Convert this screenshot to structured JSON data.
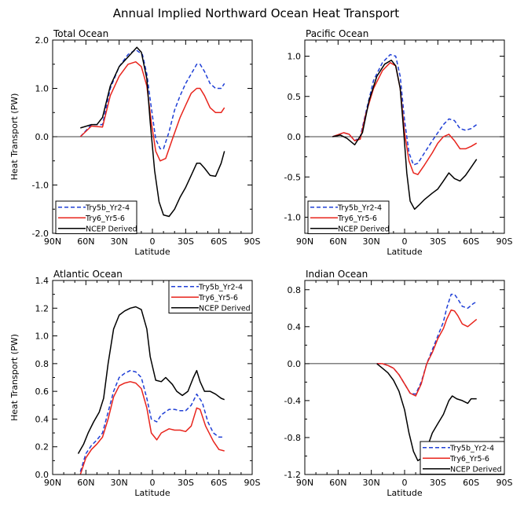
{
  "title": "Annual Implied Northward Ocean Heat Transport",
  "colors": {
    "series": [
      "#1f3fd6",
      "#e8241c",
      "#000000"
    ],
    "axis": "#000000"
  },
  "chart_data": [
    {
      "type": "line",
      "title": "Total Ocean",
      "xlabel": "Latitude",
      "ylabel": "Heat Transport (PW)",
      "xlim": [
        90,
        -90
      ],
      "ylim": [
        -2.0,
        2.0
      ],
      "xticks": [
        90,
        60,
        30,
        0,
        -30,
        -60,
        -90
      ],
      "xtick_labels": [
        "90N",
        "60N",
        "30N",
        "0",
        "30S",
        "60S",
        "90S"
      ],
      "yticks": [
        -2.0,
        -1.0,
        0.0,
        1.0,
        2.0
      ],
      "ytick_labels": [
        "-2.0",
        "-1.0",
        "0.0",
        "1.0",
        "2.0"
      ],
      "legend_position": "bottom-left",
      "series": [
        {
          "name": "Try5b_Yr2-4",
          "style": "dashed",
          "x": [
            65,
            55,
            45,
            38,
            30,
            22,
            15,
            9,
            5,
            1,
            -3,
            -7,
            -10,
            -15,
            -20,
            -25,
            -30,
            -35,
            -40,
            -43,
            -47,
            -52,
            -57,
            -62,
            -65
          ],
          "y": [
            0.0,
            0.25,
            0.25,
            1.0,
            1.45,
            1.7,
            1.8,
            1.7,
            1.3,
            0.6,
            -0.05,
            -0.25,
            -0.25,
            0.1,
            0.55,
            0.85,
            1.1,
            1.3,
            1.5,
            1.5,
            1.35,
            1.1,
            1.0,
            1.0,
            1.1
          ]
        },
        {
          "name": "Try6_Yr5-6",
          "style": "solid",
          "x": [
            65,
            55,
            45,
            38,
            30,
            22,
            15,
            10,
            5,
            1,
            -3,
            -7,
            -12,
            -18,
            -25,
            -30,
            -35,
            -40,
            -43,
            -47,
            -52,
            -57,
            -62,
            -65
          ],
          "y": [
            0.0,
            0.22,
            0.2,
            0.85,
            1.25,
            1.5,
            1.55,
            1.45,
            1.05,
            0.3,
            -0.3,
            -0.5,
            -0.45,
            -0.05,
            0.4,
            0.65,
            0.9,
            1.0,
            1.0,
            0.85,
            0.6,
            0.5,
            0.5,
            0.6
          ]
        },
        {
          "name": "NCEP Derived",
          "style": "solid",
          "x": [
            65,
            55,
            50,
            45,
            38,
            30,
            22,
            14,
            10,
            5,
            2,
            -2,
            -6,
            -10,
            -15,
            -20,
            -25,
            -30,
            -35,
            -40,
            -43,
            -47,
            -52,
            -57,
            -62,
            -65
          ],
          "y": [
            0.18,
            0.25,
            0.25,
            0.4,
            1.05,
            1.45,
            1.65,
            1.85,
            1.75,
            1.2,
            0.3,
            -0.7,
            -1.35,
            -1.62,
            -1.65,
            -1.5,
            -1.25,
            -1.05,
            -0.8,
            -0.55,
            -0.55,
            -0.65,
            -0.8,
            -0.82,
            -0.55,
            -0.3
          ]
        }
      ]
    },
    {
      "type": "line",
      "title": "Pacific Ocean",
      "xlabel": "Latitude",
      "ylabel": "",
      "xlim": [
        90,
        -90
      ],
      "ylim": [
        -1.2,
        1.2
      ],
      "xticks": [
        90,
        60,
        30,
        0,
        -30,
        -60,
        -90
      ],
      "xtick_labels": [
        "90N",
        "60N",
        "30N",
        "0",
        "30S",
        "60S",
        "90S"
      ],
      "yticks": [
        -1.0,
        -0.5,
        0.0,
        0.5,
        1.0
      ],
      "ytick_labels": [
        "-1.0",
        "-0.5",
        "0.0",
        "0.5",
        "1.0"
      ],
      "legend_position": "bottom-left",
      "series": [
        {
          "name": "Try5b_Yr2-4",
          "style": "dashed",
          "x": [
            65,
            55,
            50,
            45,
            40,
            35,
            28,
            20,
            13,
            8,
            4,
            0,
            -4,
            -8,
            -12,
            -18,
            -25,
            -30,
            -35,
            -40,
            -45,
            -50,
            -55,
            -60,
            -65
          ],
          "y": [
            0.0,
            0.05,
            0.03,
            -0.05,
            0.0,
            0.3,
            0.7,
            0.92,
            1.02,
            1.0,
            0.75,
            0.2,
            -0.2,
            -0.35,
            -0.33,
            -0.2,
            -0.05,
            0.05,
            0.15,
            0.22,
            0.2,
            0.1,
            0.08,
            0.1,
            0.15
          ]
        },
        {
          "name": "Try6_Yr5-6",
          "style": "solid",
          "x": [
            65,
            55,
            50,
            45,
            40,
            35,
            28,
            20,
            13,
            8,
            4,
            0,
            -4,
            -8,
            -12,
            -18,
            -25,
            -30,
            -35,
            -40,
            -45,
            -50,
            -55,
            -60,
            -65
          ],
          "y": [
            0.0,
            0.05,
            0.03,
            -0.05,
            -0.03,
            0.28,
            0.6,
            0.82,
            0.92,
            0.88,
            0.6,
            0.05,
            -0.3,
            -0.45,
            -0.47,
            -0.35,
            -0.2,
            -0.08,
            0.0,
            0.03,
            -0.05,
            -0.15,
            -0.15,
            -0.12,
            -0.08
          ]
        },
        {
          "name": "NCEP Derived",
          "style": "solid",
          "x": [
            65,
            58,
            52,
            45,
            38,
            32,
            25,
            18,
            12,
            8,
            4,
            1,
            -2,
            -5,
            -9,
            -13,
            -18,
            -25,
            -30,
            -35,
            -40,
            -45,
            -50,
            -55,
            -60,
            -65
          ],
          "y": [
            0.0,
            0.02,
            -0.02,
            -0.1,
            0.05,
            0.45,
            0.75,
            0.9,
            0.95,
            0.88,
            0.6,
            0.1,
            -0.45,
            -0.8,
            -0.9,
            -0.85,
            -0.78,
            -0.7,
            -0.65,
            -0.55,
            -0.45,
            -0.52,
            -0.55,
            -0.48,
            -0.38,
            -0.28
          ]
        }
      ]
    },
    {
      "type": "line",
      "title": "Atlantic Ocean",
      "xlabel": "Latitude",
      "ylabel": "Heat Transport (PW)",
      "xlim": [
        90,
        -90
      ],
      "ylim": [
        0.0,
        1.4
      ],
      "xticks": [
        90,
        60,
        30,
        0,
        -30,
        -60,
        -90
      ],
      "xtick_labels": [
        "90N",
        "60N",
        "30N",
        "0",
        "30S",
        "60S",
        "90S"
      ],
      "yticks": [
        0.0,
        0.2,
        0.4,
        0.6,
        0.8,
        1.0,
        1.2,
        1.4
      ],
      "ytick_labels": [
        "0.0",
        "0.2",
        "0.4",
        "0.6",
        "0.8",
        "1.0",
        "1.2",
        "1.4"
      ],
      "legend_position": "top-right",
      "series": [
        {
          "name": "Try5b_Yr2-4",
          "style": "dashed",
          "x": [
            65,
            60,
            55,
            50,
            45,
            40,
            35,
            30,
            25,
            20,
            15,
            10,
            5,
            1,
            -4,
            -8,
            -15,
            -20,
            -25,
            -30,
            -35,
            -40,
            -45,
            -50,
            -55,
            -60,
            -65
          ],
          "y": [
            0.02,
            0.15,
            0.21,
            0.25,
            0.3,
            0.45,
            0.6,
            0.7,
            0.73,
            0.75,
            0.74,
            0.7,
            0.55,
            0.4,
            0.38,
            0.43,
            0.47,
            0.47,
            0.46,
            0.46,
            0.5,
            0.58,
            0.52,
            0.38,
            0.3,
            0.27,
            0.27
          ]
        },
        {
          "name": "Try6_Yr5-6",
          "style": "solid",
          "x": [
            65,
            60,
            55,
            50,
            45,
            40,
            35,
            30,
            25,
            20,
            15,
            10,
            5,
            1,
            -4,
            -8,
            -15,
            -20,
            -25,
            -30,
            -35,
            -40,
            -43,
            -48,
            -55,
            -60,
            -65
          ],
          "y": [
            0.0,
            0.12,
            0.18,
            0.22,
            0.27,
            0.4,
            0.56,
            0.64,
            0.66,
            0.67,
            0.66,
            0.62,
            0.48,
            0.3,
            0.25,
            0.3,
            0.33,
            0.32,
            0.32,
            0.31,
            0.35,
            0.48,
            0.47,
            0.35,
            0.24,
            0.18,
            0.17
          ]
        },
        {
          "name": "NCEP Derived",
          "style": "solid",
          "x": [
            67,
            62,
            58,
            53,
            48,
            44,
            40,
            35,
            30,
            25,
            20,
            15,
            10,
            5,
            2,
            -3,
            -8,
            -12,
            -18,
            -22,
            -27,
            -32,
            -37,
            -40,
            -43,
            -47,
            -52,
            -57,
            -62,
            -65
          ],
          "y": [
            0.15,
            0.22,
            0.3,
            0.38,
            0.45,
            0.55,
            0.8,
            1.05,
            1.15,
            1.18,
            1.2,
            1.21,
            1.19,
            1.05,
            0.85,
            0.68,
            0.67,
            0.7,
            0.65,
            0.6,
            0.57,
            0.6,
            0.7,
            0.75,
            0.67,
            0.6,
            0.6,
            0.58,
            0.55,
            0.54
          ]
        }
      ]
    },
    {
      "type": "line",
      "title": "Indian Ocean",
      "xlabel": "Latitude",
      "ylabel": "",
      "xlim": [
        90,
        -90
      ],
      "ylim": [
        -1.2,
        0.9
      ],
      "xticks": [
        90,
        60,
        30,
        0,
        -30,
        -60,
        -90
      ],
      "xtick_labels": [
        "90N",
        "60N",
        "30N",
        "0",
        "30S",
        "60S",
        "90S"
      ],
      "yticks": [
        -1.2,
        -0.8,
        -0.4,
        0.0,
        0.4,
        0.8
      ],
      "ytick_labels": [
        "-1.2",
        "-0.8",
        "-0.4",
        "0.0",
        "0.4",
        "0.8"
      ],
      "legend_position": "bottom-right",
      "series": [
        {
          "name": "Try5b_Yr2-4",
          "style": "dashed",
          "x": [
            25,
            20,
            15,
            10,
            5,
            0,
            -5,
            -10,
            -15,
            -20,
            -25,
            -30,
            -35,
            -38,
            -42,
            -45,
            -48,
            -52,
            -57,
            -62,
            -65
          ],
          "y": [
            0.0,
            0.0,
            -0.02,
            -0.05,
            -0.12,
            -0.22,
            -0.32,
            -0.33,
            -0.2,
            0.0,
            0.15,
            0.3,
            0.45,
            0.6,
            0.75,
            0.75,
            0.7,
            0.62,
            0.6,
            0.65,
            0.67
          ]
        },
        {
          "name": "Try6_Yr5-6",
          "style": "solid",
          "x": [
            25,
            20,
            15,
            10,
            5,
            0,
            -5,
            -10,
            -15,
            -20,
            -25,
            -30,
            -35,
            -38,
            -42,
            -45,
            -48,
            -52,
            -57,
            -62,
            -65
          ],
          "y": [
            0.0,
            0.0,
            -0.02,
            -0.05,
            -0.12,
            -0.22,
            -0.32,
            -0.35,
            -0.22,
            0.0,
            0.12,
            0.27,
            0.38,
            0.48,
            0.58,
            0.57,
            0.52,
            0.43,
            0.4,
            0.45,
            0.48
          ]
        },
        {
          "name": "NCEP Derived",
          "style": "solid",
          "x": [
            25,
            20,
            15,
            10,
            5,
            0,
            -4,
            -8,
            -12,
            -16,
            -20,
            -25,
            -30,
            -35,
            -40,
            -43,
            -47,
            -52,
            -57,
            -60,
            -65
          ],
          "y": [
            0.0,
            -0.05,
            -0.1,
            -0.18,
            -0.3,
            -0.5,
            -0.75,
            -0.95,
            -1.05,
            -1.02,
            -0.92,
            -0.75,
            -0.65,
            -0.55,
            -0.4,
            -0.35,
            -0.38,
            -0.4,
            -0.43,
            -0.38,
            -0.38
          ]
        }
      ]
    }
  ]
}
